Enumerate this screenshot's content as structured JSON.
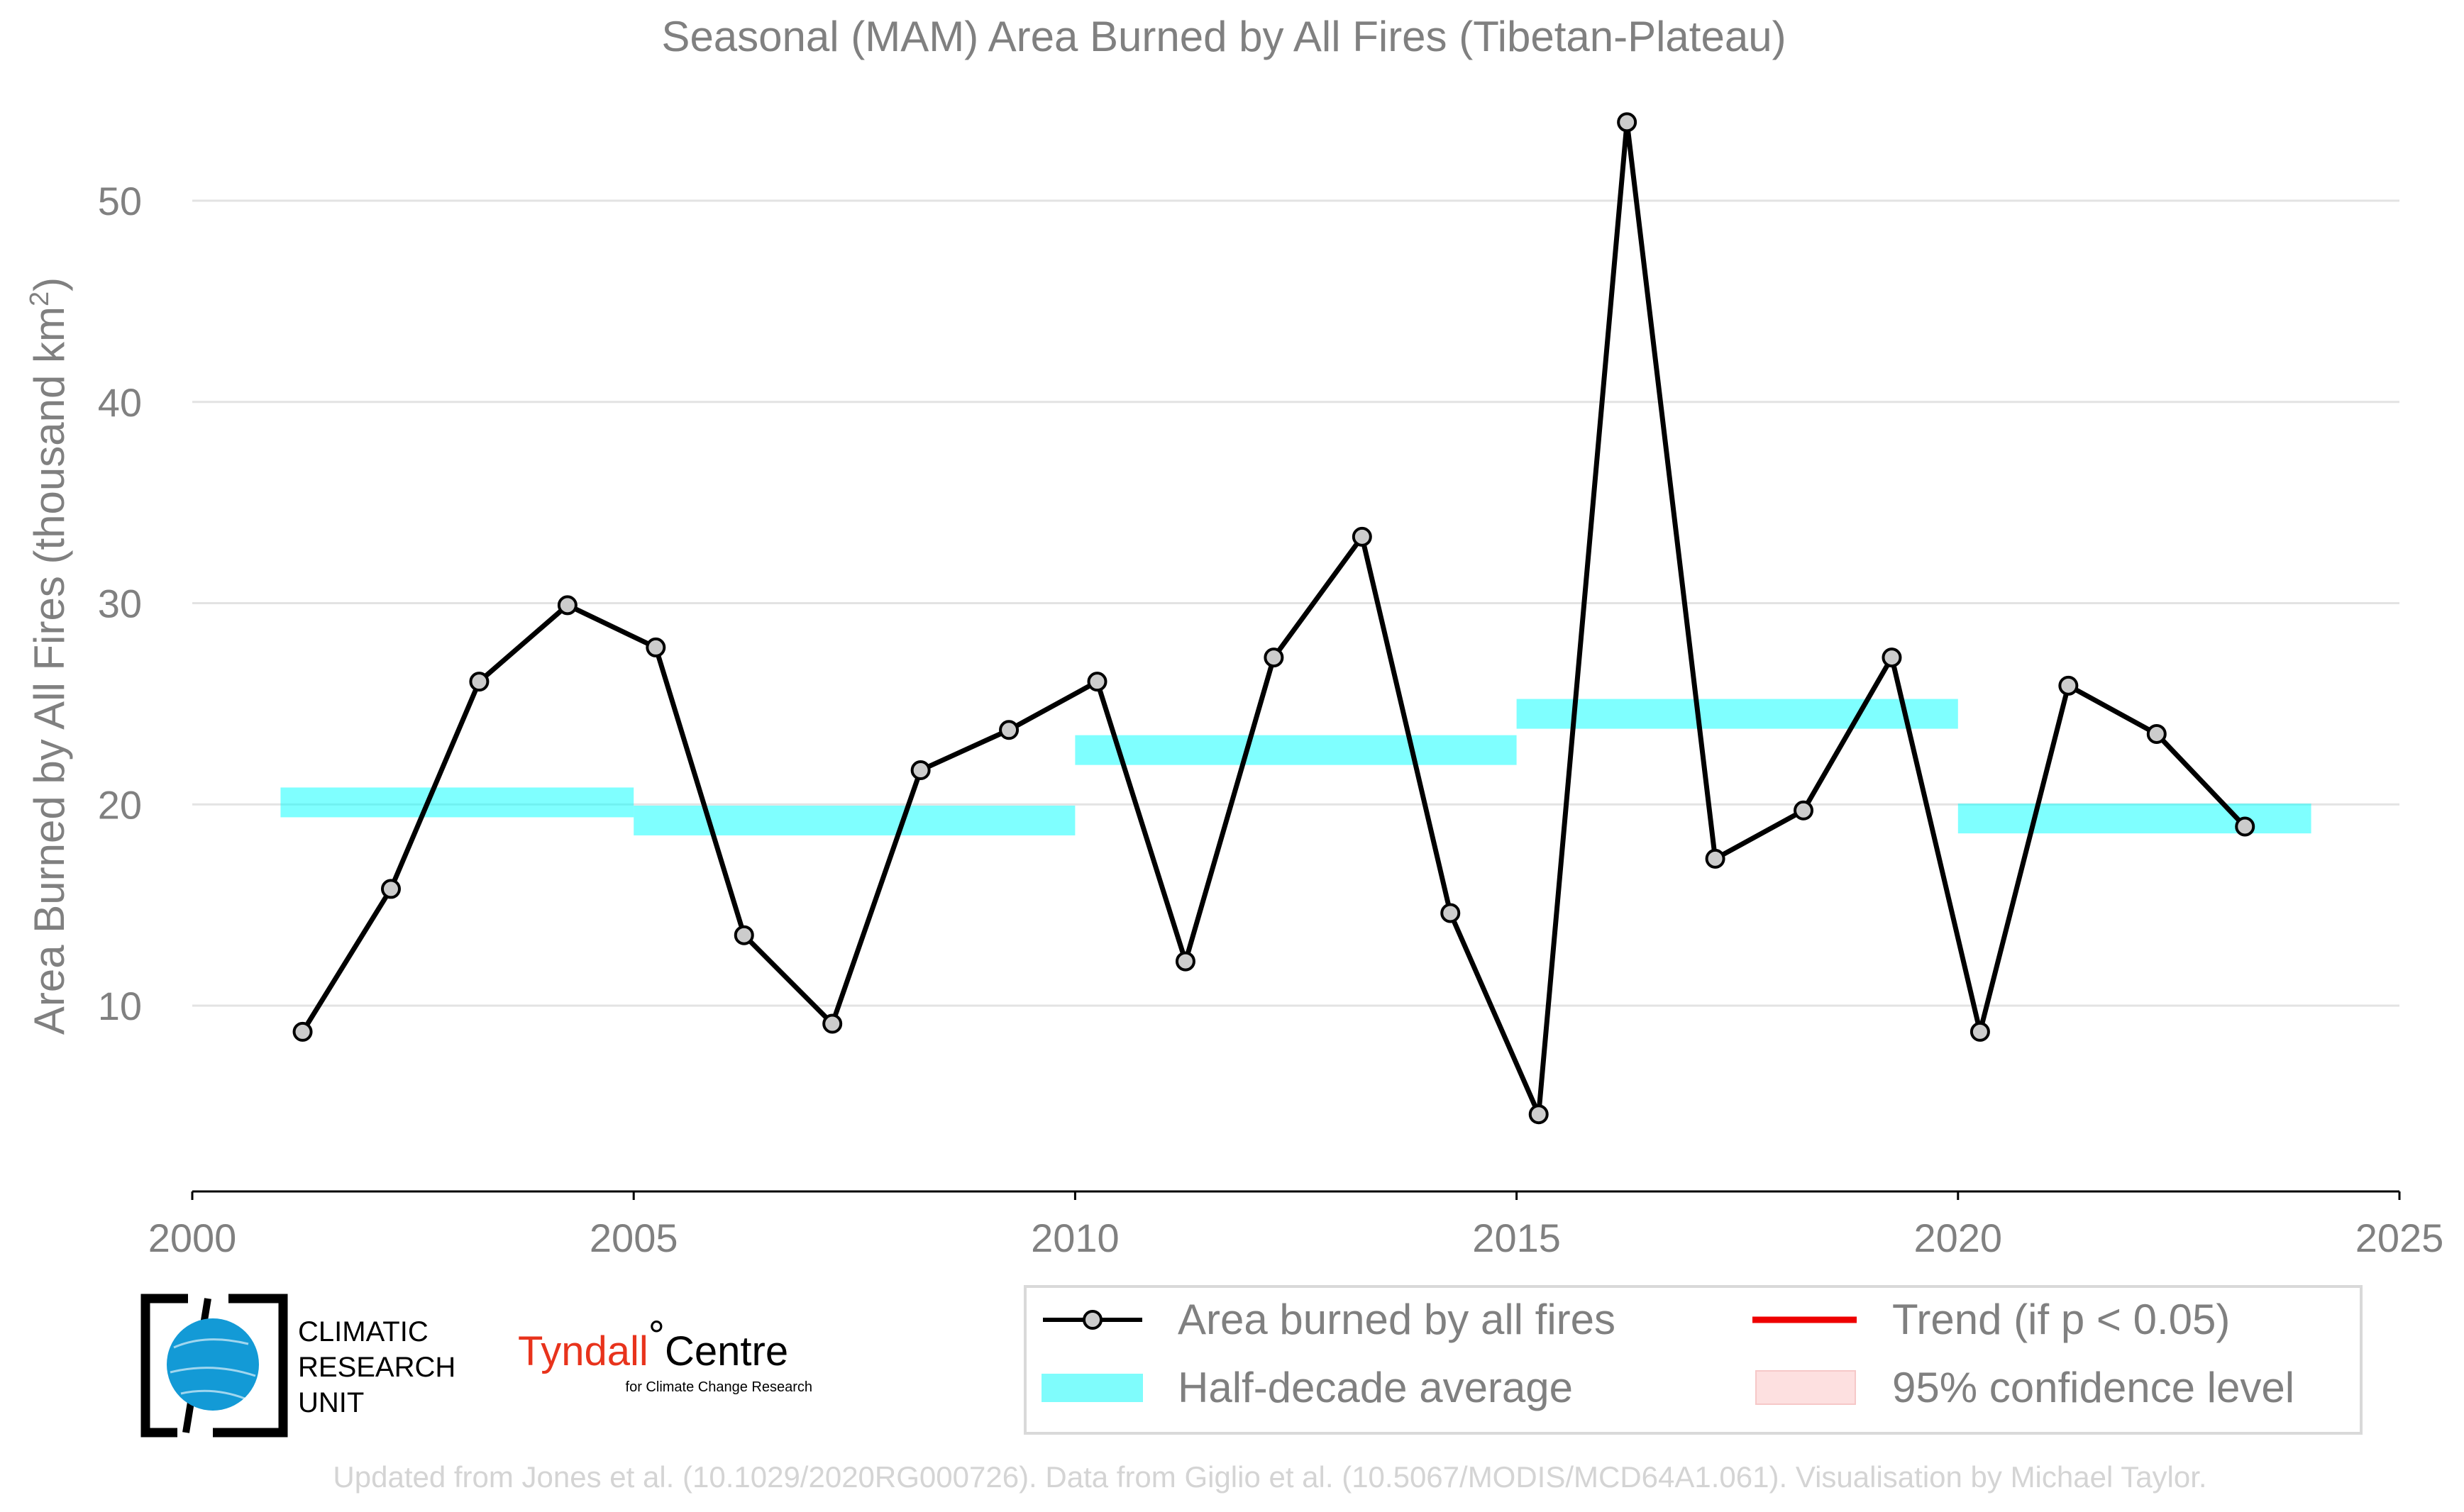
{
  "chart_data": {
    "type": "line",
    "title": "Seasonal (MAM) Area Burned by All Fires (Tibetan-Plateau)",
    "ylabel": "Area Burned by All Fires (thousand km",
    "ylabel_sup": "2",
    "ylabel_end": ")",
    "xlim": [
      2000,
      2025
    ],
    "ylim": [
      1,
      55
    ],
    "xticks": [
      2000,
      2005,
      2010,
      2015,
      2020,
      2025
    ],
    "yticks": [
      10,
      20,
      30,
      40,
      50
    ],
    "grid": true,
    "series": [
      {
        "name": "Area burned by all fires",
        "color": "#000000",
        "marker_fill": "#cccccc",
        "x": [
          2001.25,
          2002.25,
          2003.25,
          2004.25,
          2005.25,
          2006.25,
          2007.25,
          2008.25,
          2009.25,
          2010.25,
          2011.25,
          2012.25,
          2013.25,
          2014.25,
          2015.25,
          2016.25,
          2017.25,
          2018.25,
          2019.25,
          2020.25,
          2021.25,
          2022.25,
          2023.25
        ],
        "y": [
          8.7,
          15.8,
          26.1,
          29.9,
          27.8,
          13.5,
          9.1,
          21.7,
          23.7,
          26.1,
          12.2,
          27.3,
          33.3,
          14.6,
          4.6,
          53.9,
          17.3,
          19.7,
          27.3,
          8.7,
          25.9,
          23.5,
          18.9
        ]
      }
    ],
    "half_decade_averages": {
      "name": "Half-decade average",
      "color": "#00ffff",
      "segments": [
        {
          "x_start": 2001,
          "x_end": 2005,
          "value": 20.1
        },
        {
          "x_start": 2005,
          "x_end": 2010,
          "value": 19.2
        },
        {
          "x_start": 2010,
          "x_end": 2015,
          "value": 22.7
        },
        {
          "x_start": 2015,
          "x_end": 2020,
          "value": 24.5
        },
        {
          "x_start": 2020,
          "x_end": 2024,
          "value": 19.3
        }
      ]
    },
    "legend": {
      "placement": "bottom-right",
      "entries": [
        {
          "label": "Area burned by all fires",
          "kind": "line-marker",
          "color": "#000000"
        },
        {
          "label": "Trend (if p < 0.05)",
          "kind": "line",
          "color": "#ee0000"
        },
        {
          "label": "Half-decade average",
          "kind": "band",
          "color": "#00ffff"
        },
        {
          "label": "95% confidence level",
          "kind": "band",
          "color": "#ffcccc"
        }
      ]
    }
  },
  "logos": {
    "cru_lines": [
      "CLIMATIC",
      "RESEARCH",
      "UNIT"
    ],
    "tyndall_main": "Tyndall",
    "tyndall_degree": "°",
    "tyndall_centre": "Centre",
    "tyndall_sub": "for Climate Change Research"
  },
  "credits": "Updated from Jones et al. (10.1029/2020RG000726). Data from Giglio et al. (10.5067/MODIS/MCD64A1.061). Visualisation by Michael Taylor."
}
